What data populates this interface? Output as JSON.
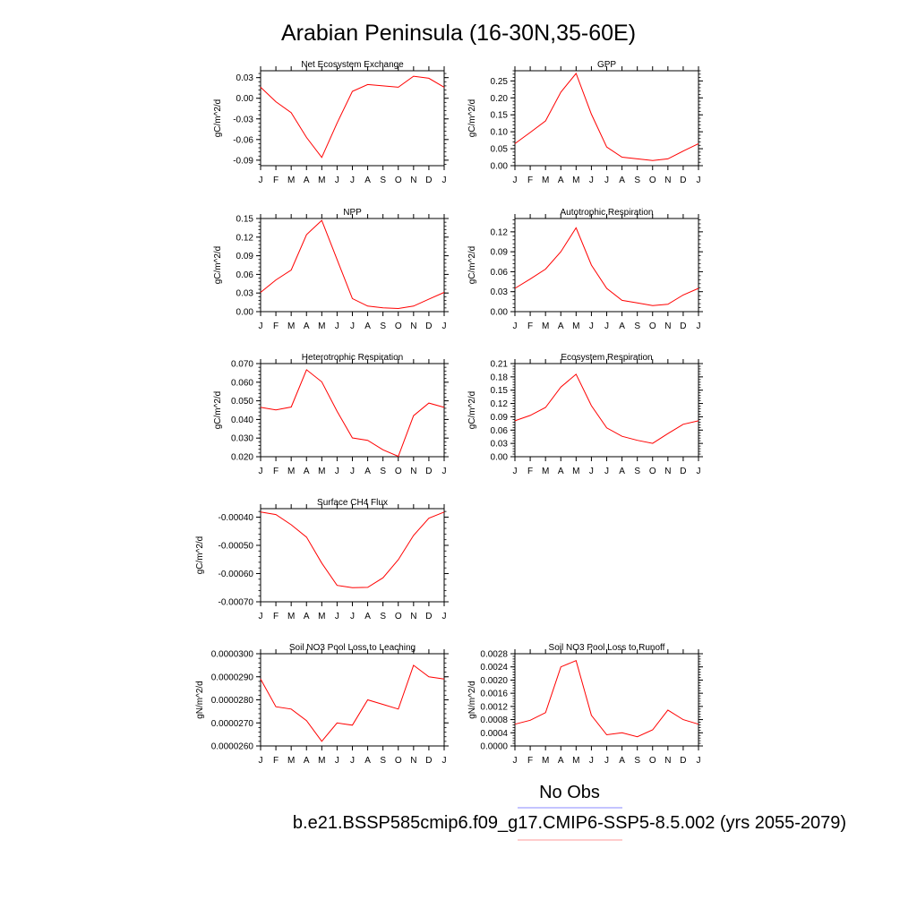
{
  "title": "Arabian Peninsula (16-30N,35-60E)",
  "legend": {
    "obs_label": "No Obs",
    "obs_color": "#0000ff",
    "model_label": "b.e21.BSSP585cmip6.f09_g17.CMIP6-SSP5-8.5.002 (yrs 2055-2079)",
    "model_color": "#ff0000"
  },
  "months": [
    "J",
    "F",
    "M",
    "A",
    "M",
    "J",
    "J",
    "A",
    "S",
    "O",
    "N",
    "D",
    "J"
  ],
  "chart_data": [
    {
      "type": "line",
      "title": "Net Ecosystem Exchange",
      "ylabel": "gC/m^2/d",
      "categories": [
        "J",
        "F",
        "M",
        "A",
        "M",
        "J",
        "J",
        "A",
        "S",
        "O",
        "N",
        "D",
        "J"
      ],
      "ylim": [
        -0.098,
        0.04
      ],
      "yticks": [
        -0.09,
        -0.06,
        -0.03,
        0.0,
        0.03
      ],
      "ytick_labels": [
        "-0.09",
        "-0.06",
        "-0.03",
        "0.00",
        "0.03"
      ],
      "values": [
        0.016,
        -0.005,
        -0.021,
        -0.057,
        -0.086,
        -0.036,
        0.01,
        0.02,
        0.018,
        0.016,
        0.032,
        0.029,
        0.016
      ]
    },
    {
      "type": "line",
      "title": "GPP",
      "ylabel": "gC/m^2/d",
      "categories": [
        "J",
        "F",
        "M",
        "A",
        "M",
        "J",
        "J",
        "A",
        "S",
        "O",
        "N",
        "D",
        "J"
      ],
      "ylim": [
        0.0,
        0.28
      ],
      "yticks": [
        0.0,
        0.05,
        0.1,
        0.15,
        0.2,
        0.25
      ],
      "ytick_labels": [
        "0.00",
        "0.05",
        "0.10",
        "0.15",
        "0.20",
        "0.25"
      ],
      "values": [
        0.065,
        0.098,
        0.132,
        0.217,
        0.272,
        0.152,
        0.055,
        0.025,
        0.02,
        0.015,
        0.02,
        0.043,
        0.065
      ]
    },
    {
      "type": "line",
      "title": "NPP",
      "ylabel": "gC/m^2/d",
      "categories": [
        "J",
        "F",
        "M",
        "A",
        "M",
        "J",
        "J",
        "A",
        "S",
        "O",
        "N",
        "D",
        "J"
      ],
      "ylim": [
        0.0,
        0.15
      ],
      "yticks": [
        0.0,
        0.03,
        0.06,
        0.09,
        0.12,
        0.15
      ],
      "ytick_labels": [
        "0.00",
        "0.03",
        "0.06",
        "0.09",
        "0.12",
        "0.15"
      ],
      "values": [
        0.031,
        0.051,
        0.067,
        0.124,
        0.147,
        0.084,
        0.021,
        0.009,
        0.006,
        0.005,
        0.009,
        0.02,
        0.031
      ]
    },
    {
      "type": "line",
      "title": "Autotrophic Respiration",
      "ylabel": "gC/m^2/d",
      "categories": [
        "J",
        "F",
        "M",
        "A",
        "M",
        "J",
        "J",
        "A",
        "S",
        "O",
        "N",
        "D",
        "J"
      ],
      "ylim": [
        0.0,
        0.14
      ],
      "yticks": [
        0.0,
        0.03,
        0.06,
        0.09,
        0.12
      ],
      "ytick_labels": [
        "0.00",
        "0.03",
        "0.06",
        "0.09",
        "0.12"
      ],
      "values": [
        0.035,
        0.049,
        0.064,
        0.09,
        0.126,
        0.07,
        0.035,
        0.017,
        0.013,
        0.009,
        0.011,
        0.025,
        0.035
      ]
    },
    {
      "type": "line",
      "title": "Heterotrophic Respiration",
      "ylabel": "gC/m^2/d",
      "categories": [
        "J",
        "F",
        "M",
        "A",
        "M",
        "J",
        "J",
        "A",
        "S",
        "O",
        "N",
        "D",
        "J"
      ],
      "ylim": [
        0.02,
        0.07
      ],
      "yticks": [
        0.02,
        0.03,
        0.04,
        0.05,
        0.06,
        0.07
      ],
      "ytick_labels": [
        "0.020",
        "0.030",
        "0.040",
        "0.050",
        "0.060",
        "0.070"
      ],
      "values": [
        0.0465,
        0.0451,
        0.0467,
        0.0667,
        0.0602,
        0.0444,
        0.0301,
        0.0288,
        0.0237,
        0.0202,
        0.042,
        0.0488,
        0.0465
      ]
    },
    {
      "type": "line",
      "title": "Ecosystem Respiration",
      "ylabel": "gC/m^2/d",
      "categories": [
        "J",
        "F",
        "M",
        "A",
        "M",
        "J",
        "J",
        "A",
        "S",
        "O",
        "N",
        "D",
        "J"
      ],
      "ylim": [
        0.0,
        0.21
      ],
      "yticks": [
        0.0,
        0.03,
        0.06,
        0.09,
        0.12,
        0.15,
        0.18,
        0.21
      ],
      "ytick_labels": [
        "0.00",
        "0.03",
        "0.06",
        "0.09",
        "0.12",
        "0.15",
        "0.18",
        "0.21"
      ],
      "values": [
        0.081,
        0.093,
        0.111,
        0.157,
        0.186,
        0.115,
        0.065,
        0.046,
        0.037,
        0.03,
        0.052,
        0.073,
        0.081
      ]
    },
    {
      "type": "line",
      "title": "Surface CH4 Flux",
      "ylabel": "gC/m^2/d",
      "categories": [
        "J",
        "F",
        "M",
        "A",
        "M",
        "J",
        "J",
        "A",
        "S",
        "O",
        "N",
        "D",
        "J"
      ],
      "ylim": [
        -0.0007,
        -0.00037
      ],
      "yticks": [
        -0.0007,
        -0.0006,
        -0.0005,
        -0.0004
      ],
      "ytick_labels": [
        "-0.00070",
        "-0.00060",
        "-0.00050",
        "-0.00040"
      ],
      "values": [
        -0.000382,
        -0.000391,
        -0.000427,
        -0.000471,
        -0.000563,
        -0.000642,
        -0.00065,
        -0.000649,
        -0.000615,
        -0.000551,
        -0.000465,
        -0.000404,
        -0.000382
      ]
    },
    {
      "type": "line",
      "title": "Soil NO3 Pool Loss to Leaching",
      "ylabel": "gN/m^2/d",
      "categories": [
        "J",
        "F",
        "M",
        "A",
        "M",
        "J",
        "J",
        "A",
        "S",
        "O",
        "N",
        "D",
        "J"
      ],
      "ylim": [
        2.6e-05,
        3e-05
      ],
      "yticks": [
        2.6e-05,
        2.7e-05,
        2.8e-05,
        2.9e-05,
        3e-05
      ],
      "ytick_labels": [
        "0.0000260",
        "0.0000270",
        "0.0000280",
        "0.0000290",
        "0.0000300"
      ],
      "values": [
        2.89e-05,
        2.77e-05,
        2.76e-05,
        2.71e-05,
        2.62e-05,
        2.7e-05,
        2.69e-05,
        2.8e-05,
        2.78e-05,
        2.76e-05,
        2.95e-05,
        2.9e-05,
        2.89e-05
      ]
    },
    {
      "type": "line",
      "title": "Soil NO3 Pool Loss to Runoff",
      "ylabel": "gN/m^2/d",
      "categories": [
        "J",
        "F",
        "M",
        "A",
        "M",
        "J",
        "J",
        "A",
        "S",
        "O",
        "N",
        "D",
        "J"
      ],
      "ylim": [
        0.0,
        0.0028
      ],
      "yticks": [
        0.0,
        0.0004,
        0.0008,
        0.0012,
        0.0016,
        0.002,
        0.0024,
        0.0028
      ],
      "ytick_labels": [
        "0.0000",
        "0.0004",
        "0.0008",
        "0.0012",
        "0.0016",
        "0.0020",
        "0.0024",
        "0.0028"
      ],
      "values": [
        0.00066,
        0.00078,
        0.00101,
        0.0024,
        0.00259,
        0.00093,
        0.00034,
        0.0004,
        0.00028,
        0.00049,
        0.00109,
        0.0008,
        0.00066
      ]
    }
  ]
}
